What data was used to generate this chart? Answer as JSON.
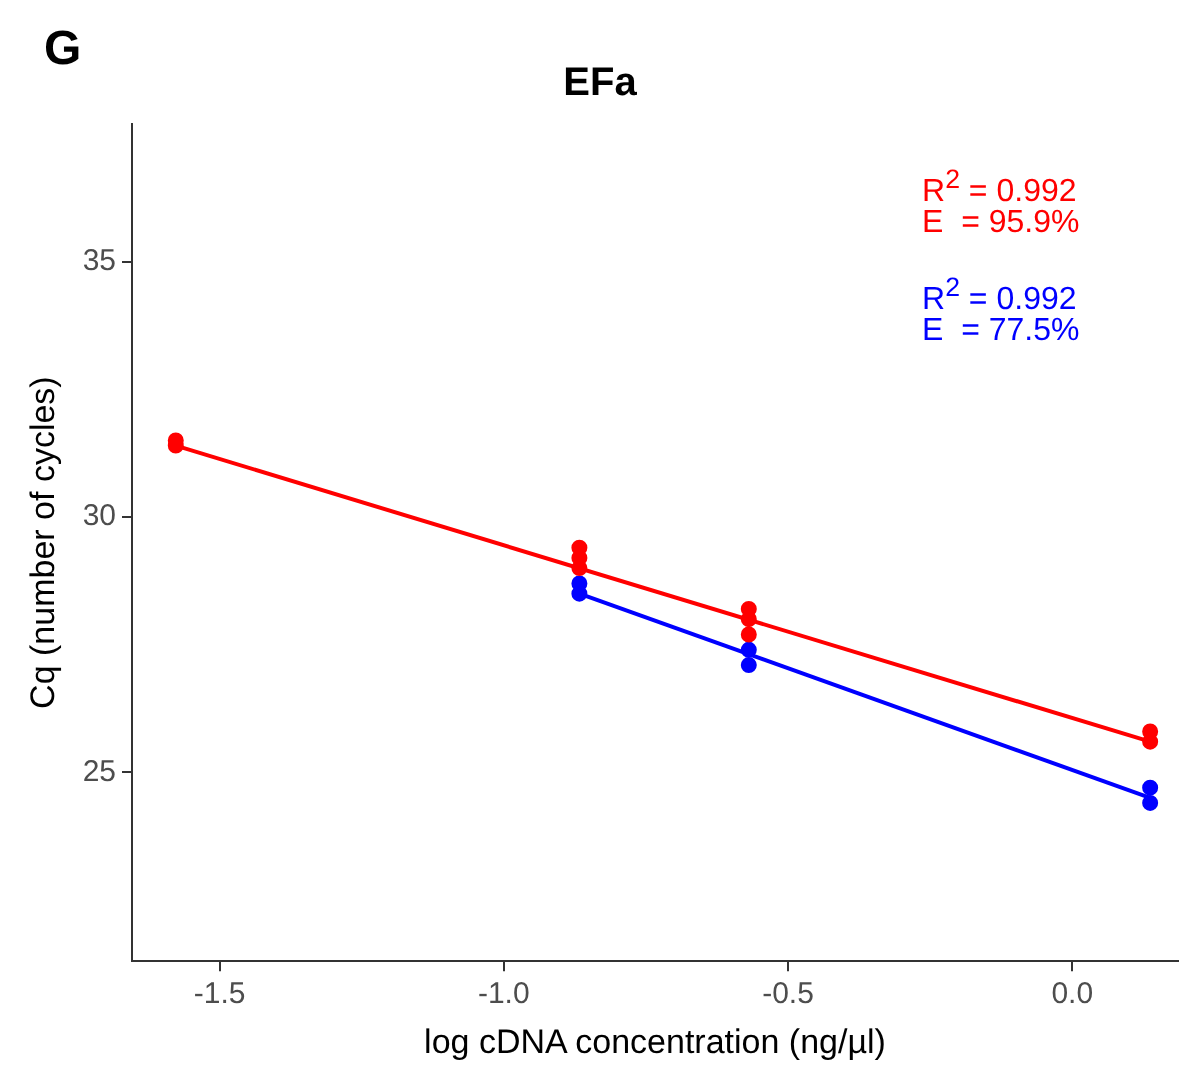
{
  "chart_data": {
    "type": "scatter",
    "title": "EFa",
    "xlabel": "log cDNA concentration (ng/µl)",
    "ylabel": "Cq (number of cycles)",
    "annotations": [
      "G",
      "R$^{2}$ = 0.992",
      "E  = 95.9%",
      "R$^{2}$ = 0.992",
      "E  = 77.5%"
    ],
    "xlim": [
      -1.654,
      0.186
    ],
    "xticks": [
      {
        "value": -1.5,
        "label": "-1.5"
      },
      {
        "value": -1.0,
        "label": "-1.0"
      },
      {
        "value": -0.5,
        "label": "-0.5"
      },
      {
        "value": 0.0,
        "label": "0.0"
      }
    ],
    "ylim": [
      21.3,
      37.7
    ],
    "yticks": [
      25,
      30,
      35
    ],
    "grid": false,
    "legend": false,
    "marker": "circle",
    "series": [
      {
        "color": "#ff0000",
        "x": [
          -1.577,
          -1.577,
          -0.867,
          -0.867,
          -0.867,
          -0.569,
          -0.569,
          -0.569,
          0.137,
          0.137
        ],
        "values": [
          31.5,
          31.4,
          29.4,
          29.2,
          29.0,
          28.2,
          28.0,
          27.7,
          25.8,
          25.6
        ]
      },
      {
        "color": "#0000ff",
        "x": [
          -0.867,
          -0.867,
          -0.569,
          -0.569,
          0.137,
          0.137
        ],
        "values": [
          28.7,
          28.5,
          27.4,
          27.1,
          24.7,
          24.4
        ]
      },
      {
        "type": "line",
        "marker": "none",
        "color": "#ff0000",
        "x": [
          -1.577,
          0.137
        ],
        "values": [
          31.4,
          25.6
        ]
      },
      {
        "type": "line",
        "marker": "none",
        "color": "#0000ff",
        "x": [
          -0.867,
          0.137
        ],
        "values": [
          28.5,
          24.5
        ]
      }
    ]
  }
}
